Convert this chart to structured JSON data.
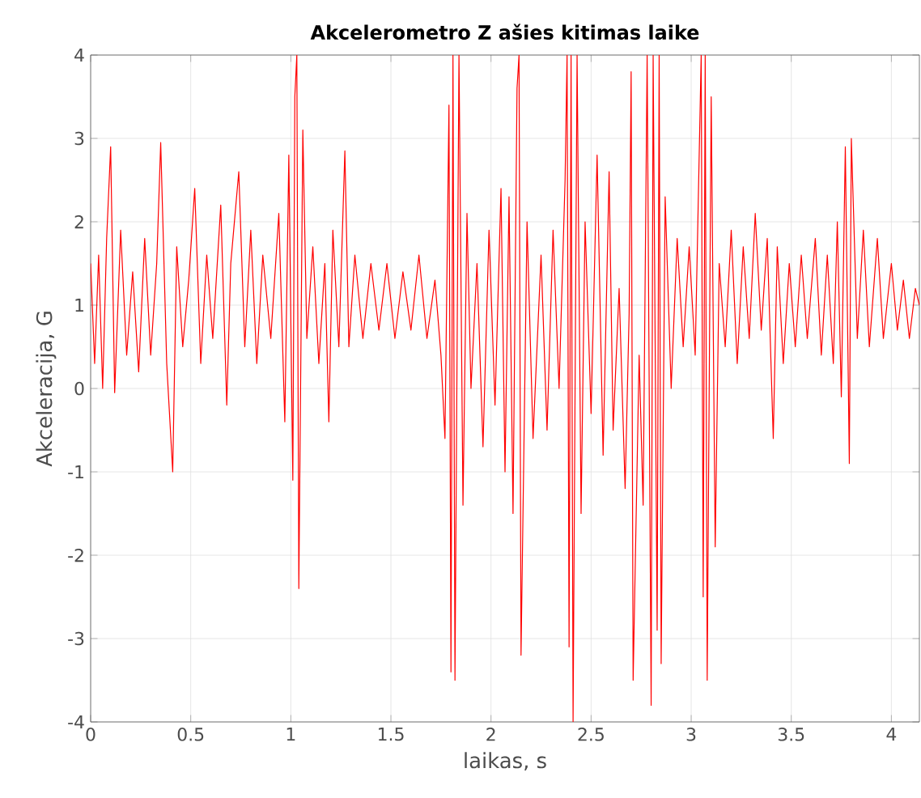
{
  "chart_data": {
    "type": "line",
    "title": "Akcelerometro Z ašies kitimas laike",
    "xlabel": "laikas, s",
    "ylabel": "Akceleracija, G",
    "x": [
      0,
      0.02,
      0.04,
      0.06,
      0.08,
      0.1,
      0.12,
      0.15,
      0.18,
      0.21,
      0.24,
      0.27,
      0.3,
      0.33,
      0.35,
      0.38,
      0.41,
      0.43,
      0.46,
      0.49,
      0.52,
      0.55,
      0.58,
      0.61,
      0.65,
      0.68,
      0.7,
      0.74,
      0.77,
      0.8,
      0.83,
      0.86,
      0.9,
      0.94,
      0.97,
      0.99,
      1.01,
      1.02,
      1.03,
      1.04,
      1.06,
      1.08,
      1.11,
      1.14,
      1.17,
      1.19,
      1.21,
      1.24,
      1.27,
      1.29,
      1.32,
      1.36,
      1.4,
      1.44,
      1.48,
      1.52,
      1.56,
      1.6,
      1.64,
      1.68,
      1.72,
      1.75,
      1.77,
      1.79,
      1.8,
      1.81,
      1.82,
      1.84,
      1.86,
      1.88,
      1.9,
      1.93,
      1.96,
      1.99,
      2.02,
      2.05,
      2.07,
      2.09,
      2.11,
      2.13,
      2.14,
      2.15,
      2.18,
      2.21,
      2.25,
      2.28,
      2.31,
      2.34,
      2.37,
      2.38,
      2.39,
      2.4,
      2.41,
      2.43,
      2.45,
      2.47,
      2.5,
      2.53,
      2.56,
      2.59,
      2.61,
      2.64,
      2.67,
      2.69,
      2.7,
      2.71,
      2.74,
      2.76,
      2.78,
      2.8,
      2.81,
      2.83,
      2.84,
      2.85,
      2.87,
      2.9,
      2.93,
      2.96,
      2.99,
      3.02,
      3.05,
      3.06,
      3.07,
      3.08,
      3.1,
      3.12,
      3.14,
      3.17,
      3.2,
      3.23,
      3.26,
      3.29,
      3.32,
      3.35,
      3.38,
      3.41,
      3.43,
      3.46,
      3.49,
      3.52,
      3.55,
      3.58,
      3.62,
      3.65,
      3.68,
      3.71,
      3.73,
      3.75,
      3.77,
      3.79,
      3.8,
      3.83,
      3.86,
      3.89,
      3.93,
      3.96,
      4.0,
      4.03,
      4.06,
      4.09,
      4.12,
      4.14
    ],
    "series": [
      {
        "color": "#ff0000",
        "values": [
          1.5,
          0.3,
          1.6,
          0.0,
          1.8,
          2.9,
          -0.05,
          1.9,
          0.4,
          1.4,
          0.2,
          1.8,
          0.4,
          1.5,
          2.95,
          0.3,
          -1.0,
          1.7,
          0.5,
          1.3,
          2.4,
          0.3,
          1.6,
          0.6,
          2.2,
          -0.2,
          1.5,
          2.6,
          0.5,
          1.9,
          0.3,
          1.6,
          0.6,
          2.1,
          -0.4,
          2.8,
          -1.1,
          3.5,
          4.0,
          -2.4,
          3.1,
          0.6,
          1.7,
          0.3,
          1.5,
          -0.4,
          1.9,
          0.5,
          2.85,
          0.5,
          1.6,
          0.6,
          1.5,
          0.7,
          1.5,
          0.6,
          1.4,
          0.7,
          1.6,
          0.6,
          1.3,
          0.4,
          -0.6,
          3.4,
          -3.4,
          4.0,
          -3.5,
          4.0,
          -1.4,
          2.1,
          0.0,
          1.5,
          -0.7,
          1.9,
          -0.2,
          2.4,
          -1.0,
          2.3,
          -1.5,
          3.6,
          4.0,
          -3.2,
          2.0,
          -0.6,
          1.6,
          -0.5,
          1.9,
          0.0,
          2.5,
          4.0,
          -3.1,
          4.0,
          -4.0,
          4.0,
          -1.5,
          2.0,
          -0.3,
          2.8,
          -0.8,
          2.6,
          -0.5,
          1.2,
          -1.2,
          0.9,
          3.8,
          -3.5,
          0.4,
          -1.4,
          4.0,
          -3.8,
          4.0,
          -2.9,
          4.0,
          -3.3,
          2.3,
          0.0,
          1.8,
          0.5,
          1.7,
          0.4,
          4.0,
          -2.5,
          4.0,
          -3.5,
          3.5,
          -1.9,
          1.5,
          0.5,
          1.9,
          0.3,
          1.7,
          0.6,
          2.1,
          0.7,
          1.8,
          -0.6,
          1.7,
          0.3,
          1.5,
          0.5,
          1.6,
          0.6,
          1.8,
          0.4,
          1.6,
          0.3,
          2.0,
          -0.1,
          2.9,
          -0.9,
          3.0,
          0.6,
          1.9,
          0.5,
          1.8,
          0.6,
          1.5,
          0.7,
          1.3,
          0.6,
          1.2,
          1.0
        ]
      }
    ],
    "xlim": [
      0,
      4.14
    ],
    "ylim": [
      -4,
      4
    ],
    "xticks": [
      0,
      0.5,
      1,
      1.5,
      2,
      2.5,
      3,
      3.5,
      4
    ],
    "yticks": [
      -4,
      -3,
      -2,
      -1,
      0,
      1,
      2,
      3,
      4
    ],
    "grid": true,
    "marker": "none",
    "line_style": "solid"
  }
}
